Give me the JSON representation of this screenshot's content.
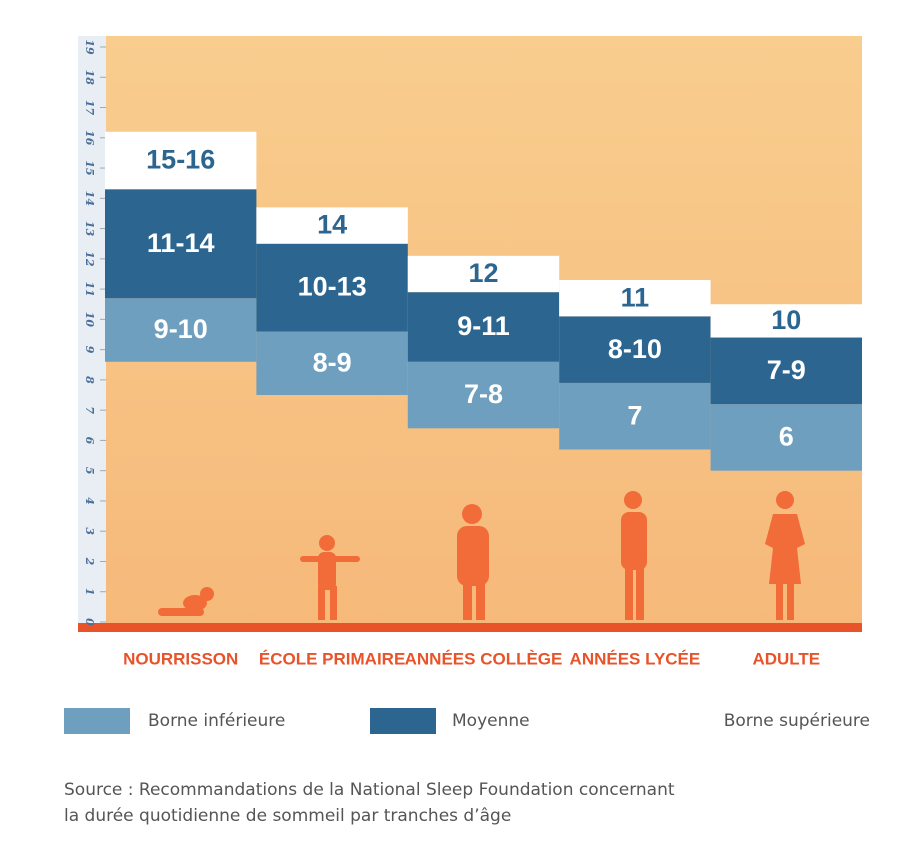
{
  "chart_data": {
    "type": "range",
    "categories": [
      "NOURRISSON",
      "ÉCOLE PRIMAIRE",
      "ANNÉES COLLÈGE",
      "ANNÉES LYCÉE",
      "ADULTE"
    ],
    "ylim": [
      0,
      19
    ],
    "yticks": [
      0,
      1,
      2,
      3,
      4,
      5,
      6,
      7,
      8,
      9,
      10,
      11,
      12,
      13,
      14,
      15,
      16,
      17,
      18,
      19
    ],
    "series": [
      {
        "name": "Borne inférieure",
        "color": "#6f9fbf",
        "low": [
          8.6,
          7.5,
          6.4,
          5.7,
          5.0
        ],
        "high": [
          10.7,
          9.6,
          8.6,
          7.9,
          7.2
        ],
        "labels": [
          "9-10",
          "8-9",
          "7-8",
          "7",
          "6"
        ]
      },
      {
        "name": "Moyenne",
        "color": "#2c6690",
        "low": [
          10.7,
          9.6,
          8.6,
          7.9,
          7.2
        ],
        "high": [
          14.3,
          12.5,
          10.9,
          10.1,
          9.4
        ],
        "labels": [
          "11-14",
          "10-13",
          "9-11",
          "8-10",
          "7-9"
        ]
      },
      {
        "name": "Borne supérieure",
        "color": "#ffffff",
        "low": [
          14.3,
          12.5,
          10.9,
          10.1,
          9.4
        ],
        "high": [
          16.2,
          13.7,
          12.1,
          11.3,
          10.5
        ],
        "labels": [
          "15-16",
          "14",
          "12",
          "11",
          "10"
        ]
      }
    ],
    "source": [
      "Source : Recommandations de la National Sleep Foundation concernant",
      "la durée quotidienne de sommeil par tranches d’âge"
    ]
  }
}
